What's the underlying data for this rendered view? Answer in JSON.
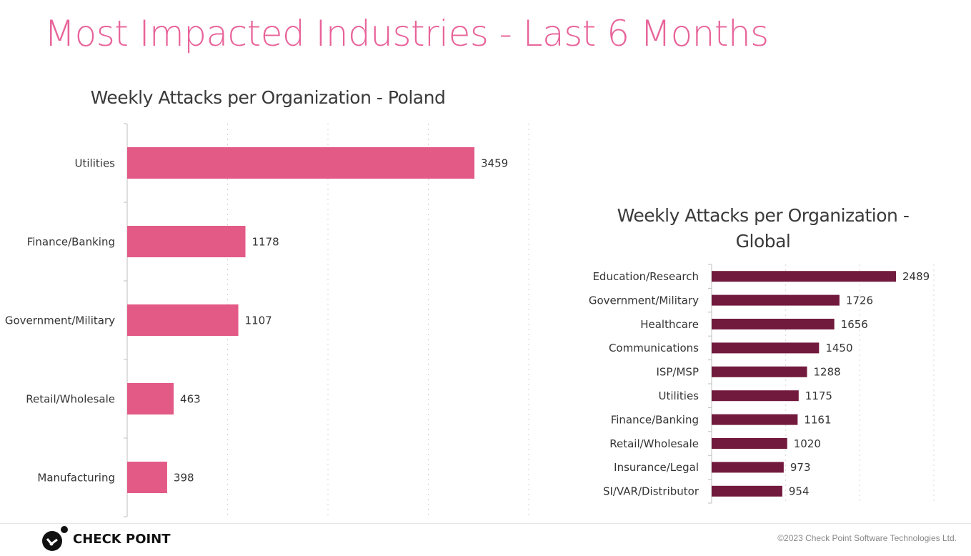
{
  "page": {
    "title": "Most Impacted Industries - Last 6 Months",
    "copyright": "©2023 Check Point Software Technologies Ltd.",
    "logo_text": "CHECK POINT"
  },
  "colors": {
    "title": "#e8649a",
    "poland_bar": "#e35a87",
    "global_bar": "#721a3d"
  },
  "chart_data": [
    {
      "type": "bar",
      "orientation": "horizontal",
      "title": "Weekly Attacks per Organization - Poland",
      "categories": [
        "Utilities",
        "Finance/Banking",
        "Government/Military",
        "Retail/Wholesale",
        "Manufacturing"
      ],
      "values": [
        3459,
        1178,
        1107,
        463,
        398
      ],
      "xlim": [
        0,
        4000
      ],
      "grid": true
    },
    {
      "type": "bar",
      "orientation": "horizontal",
      "title": "Weekly Attacks per Organization - Global",
      "title_lines": [
        "Weekly Attacks per Organization -",
        "Global"
      ],
      "categories": [
        "Education/Research",
        "Government/Military",
        "Healthcare",
        "Communications",
        "ISP/MSP",
        "Utilities",
        "Finance/Banking",
        "Retail/Wholesale",
        "Insurance/Legal",
        "SI/VAR/Distributor"
      ],
      "values": [
        2489,
        1726,
        1656,
        1450,
        1288,
        1175,
        1161,
        1020,
        973,
        954
      ],
      "xlim": [
        0,
        3000
      ],
      "grid": true
    }
  ]
}
